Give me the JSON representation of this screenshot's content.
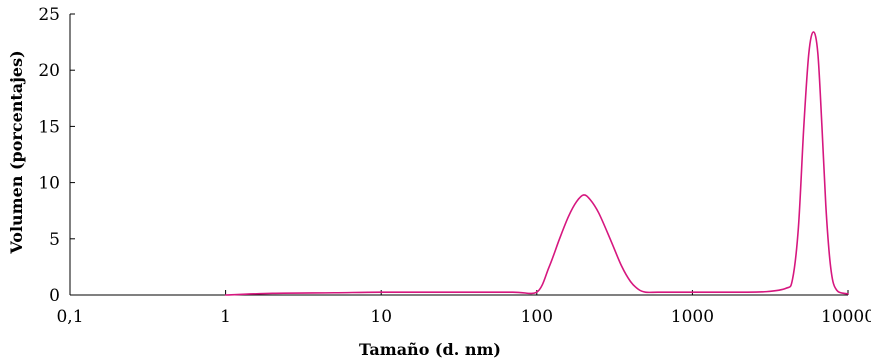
{
  "chart_data": {
    "type": "line",
    "xlabel": "Tamaño (d. nm)",
    "ylabel": "Volumen (porcentajes)",
    "x_scale": "log",
    "xlim": [
      0.1,
      10000
    ],
    "ylim": [
      0,
      25
    ],
    "x_ticks": [
      0.1,
      1,
      10,
      100,
      1000,
      10000
    ],
    "x_tick_labels": [
      "0,1",
      "1",
      "10",
      "100",
      "1000",
      "10000"
    ],
    "y_ticks": [
      0,
      5,
      10,
      15,
      20,
      25
    ],
    "y_tick_labels": [
      "0",
      "5",
      "10",
      "15",
      "20",
      "25"
    ],
    "grid": false,
    "series_color": "#d6177f",
    "series": [
      {
        "x": [
          1,
          2,
          5,
          10,
          30,
          70,
          100,
          120,
          140,
          160,
          180,
          200,
          220,
          250,
          300,
          350,
          400,
          450,
          500,
          600,
          800,
          1000,
          2000,
          3000,
          4000,
          4400,
          4800,
          5200,
          5600,
          6000,
          6400,
          6800,
          7200,
          7600,
          8000,
          8500,
          9000,
          10000
        ],
        "y": [
          0,
          0.15,
          0.2,
          0.25,
          0.25,
          0.25,
          0.25,
          2.5,
          5.0,
          7.0,
          8.3,
          8.9,
          8.5,
          7.3,
          4.8,
          2.6,
          1.2,
          0.5,
          0.25,
          0.25,
          0.25,
          0.25,
          0.25,
          0.3,
          0.6,
          1.4,
          6.0,
          15.0,
          21.5,
          23.4,
          21.5,
          15.0,
          8.0,
          3.5,
          1.2,
          0.4,
          0.2,
          0.1
        ]
      }
    ]
  }
}
